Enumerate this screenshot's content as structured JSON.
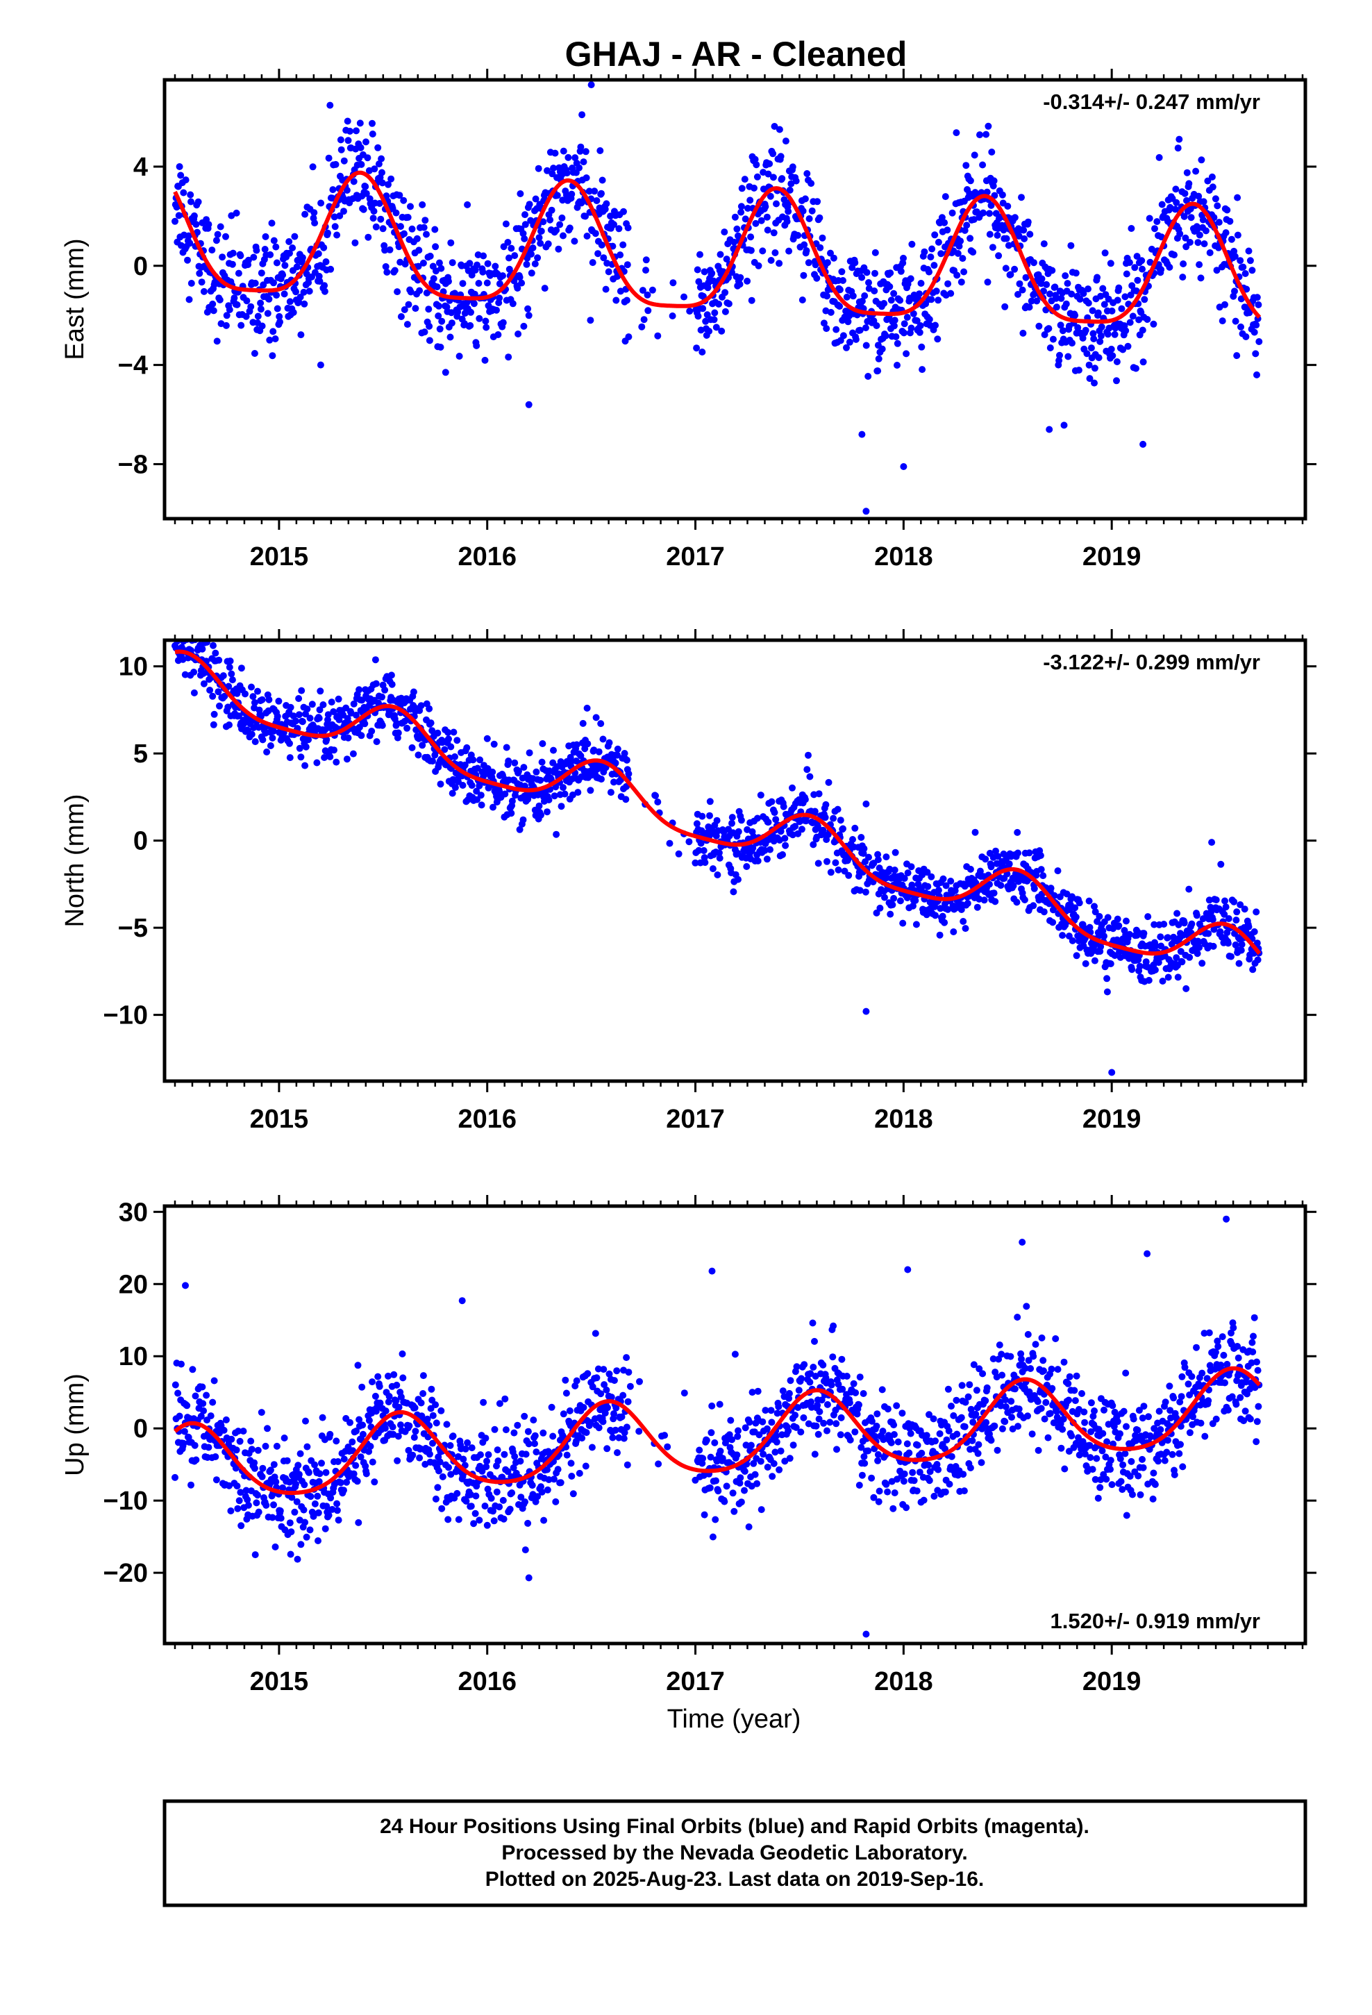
{
  "chart_data": {
    "title": "GHAJ  - AR - Cleaned",
    "xlabel": "Time (year)",
    "x_ticks": [
      "2015",
      "2016",
      "2017",
      "2018",
      "2019"
    ],
    "xlim": [
      2014.45,
      2019.93
    ],
    "colors": {
      "points": "#0000ff",
      "fit": "#ff0000",
      "frame": "#000000"
    },
    "footer_lines": [
      "24 Hour Positions Using Final Orbits (blue) and Rapid Orbits (magenta).",
      "Processed by the Nevada Geodetic Laboratory.",
      "Plotted on 2025-Aug-23. Last data on 2019-Sep-16."
    ],
    "panels": [
      {
        "type": "scatter",
        "ylabel": "East (mm)",
        "rate_label": "-0.314+/- 0.247 mm/yr",
        "rate_position": "top-right",
        "ylim": [
          -10.2,
          7.5
        ],
        "y_ticks": [
          4,
          0,
          -4,
          -8
        ],
        "y_tick_labels": [
          "4",
          "0",
          "−4",
          "−8"
        ],
        "fit": {
          "trend": 0.2,
          "slope": -0.314,
          "annual": 2.45,
          "semiannual": 0.6,
          "annual_peak": 0.39,
          "noise": 1.15
        },
        "outliers": [
          {
            "x": 2016.5,
            "y": 7.3
          },
          {
            "x": 2017.82,
            "y": -9.9
          },
          {
            "x": 2019.15,
            "y": -7.2
          },
          {
            "x": 2018.0,
            "y": -8.1
          },
          {
            "x": 2015.2,
            "y": -4.0
          },
          {
            "x": 2015.8,
            "y": -4.3
          },
          {
            "x": 2016.2,
            "y": -5.6
          },
          {
            "x": 2017.8,
            "y": -6.8
          },
          {
            "x": 2018.7,
            "y": -6.6
          }
        ]
      },
      {
        "type": "scatter",
        "ylabel": "North (mm)",
        "rate_label": "-3.122+/- 0.299 mm/yr",
        "rate_position": "top-right",
        "ylim": [
          -13.8,
          11.5
        ],
        "y_ticks": [
          10,
          5,
          0,
          -5,
          -10
        ],
        "y_tick_labels": [
          "10",
          "5",
          "0",
          "−5",
          "−10"
        ],
        "fit": {
          "trend": 1.35,
          "slope": -3.122,
          "annual": 1.45,
          "semiannual": 0.35,
          "annual_peak": 0.55,
          "noise": 0.9
        },
        "outliers": [
          {
            "x": 2017.82,
            "y": -9.8
          },
          {
            "x": 2019.0,
            "y": -13.3
          },
          {
            "x": 2019.48,
            "y": -0.1
          },
          {
            "x": 2017.82,
            "y": 2.1
          },
          {
            "x": 2014.82,
            "y": 9.9
          },
          {
            "x": 2016.48,
            "y": 7.6
          }
        ]
      },
      {
        "type": "scatter",
        "ylabel": "Up (mm)",
        "rate_label": "1.520+/- 0.919 mm/yr",
        "rate_position": "bottom-right",
        "ylim": [
          -29.8,
          30.8
        ],
        "y_ticks": [
          30,
          20,
          10,
          0,
          -10,
          -20
        ],
        "y_tick_labels": [
          "30",
          "20",
          "10",
          "0",
          "−10",
          "−20"
        ],
        "fit": {
          "trend": -1.6,
          "slope": 1.52,
          "annual": 5.2,
          "semiannual": 0.8,
          "annual_peak": 0.58,
          "noise": 3.6
        },
        "outliers": [
          {
            "x": 2017.82,
            "y": -28.5
          },
          {
            "x": 2019.55,
            "y": 29.0
          },
          {
            "x": 2017.08,
            "y": 21.8
          },
          {
            "x": 2018.02,
            "y": 22.0
          },
          {
            "x": 2018.57,
            "y": 25.8
          },
          {
            "x": 2016.2,
            "y": -20.7
          },
          {
            "x": 2015.88,
            "y": 17.7
          },
          {
            "x": 2014.55,
            "y": 19.8
          },
          {
            "x": 2019.17,
            "y": 24.2
          }
        ]
      }
    ]
  }
}
